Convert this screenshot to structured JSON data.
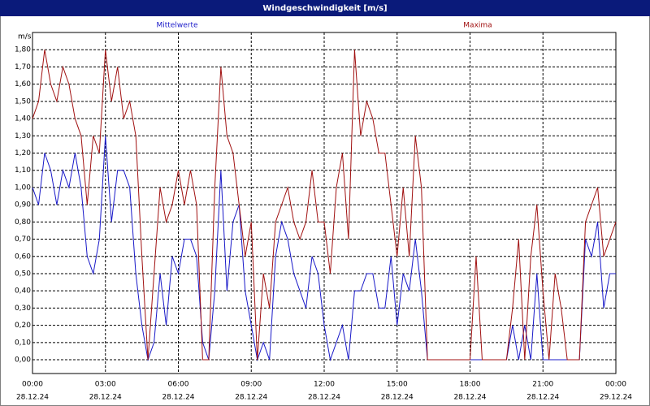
{
  "chart_data": {
    "type": "line",
    "title": "Windgeschwindigkeit [m/s]",
    "y_label": "m/s",
    "x": [
      0,
      0.25,
      0.5,
      0.75,
      1,
      1.25,
      1.5,
      1.75,
      2,
      2.25,
      2.5,
      2.75,
      3,
      3.25,
      3.5,
      3.75,
      4,
      4.25,
      4.5,
      4.75,
      5,
      5.25,
      5.5,
      5.75,
      6,
      6.25,
      6.5,
      6.75,
      7,
      7.25,
      7.5,
      7.75,
      8,
      8.25,
      8.5,
      8.75,
      9,
      9.25,
      9.5,
      9.75,
      10,
      10.25,
      10.5,
      10.75,
      11,
      11.25,
      11.5,
      11.75,
      12,
      12.25,
      12.5,
      12.75,
      13,
      13.25,
      13.5,
      13.75,
      14,
      14.25,
      14.5,
      14.75,
      15,
      15.25,
      15.5,
      15.75,
      16,
      16.25,
      16.5,
      16.75,
      17,
      17.25,
      17.5,
      17.75,
      18,
      18.25,
      18.5,
      18.75,
      19,
      19.25,
      19.5,
      19.75,
      20,
      20.25,
      20.5,
      20.75,
      21,
      21.25,
      21.5,
      21.75,
      22,
      22.25,
      22.5,
      22.75,
      23,
      23.25,
      23.5,
      23.75,
      24
    ],
    "series": [
      {
        "name": "Mittelwerte",
        "color": "#1818c8",
        "values": [
          1.0,
          0.9,
          1.2,
          1.1,
          0.9,
          1.1,
          1.0,
          1.2,
          1.0,
          0.6,
          0.5,
          0.7,
          1.3,
          0.8,
          1.1,
          1.1,
          1.0,
          0.5,
          0.2,
          0.0,
          0.1,
          0.5,
          0.2,
          0.6,
          0.5,
          0.7,
          0.7,
          0.6,
          0.1,
          0.0,
          0.4,
          1.1,
          0.4,
          0.8,
          0.9,
          0.4,
          0.2,
          0.0,
          0.1,
          0.0,
          0.6,
          0.8,
          0.7,
          0.5,
          0.4,
          0.3,
          0.6,
          0.5,
          0.2,
          0.0,
          0.1,
          0.2,
          0.0,
          0.4,
          0.4,
          0.5,
          0.5,
          0.3,
          0.3,
          0.6,
          0.2,
          0.5,
          0.4,
          0.7,
          0.4,
          0.0,
          0,
          0,
          0,
          0,
          0,
          0,
          0,
          0,
          0,
          0,
          0,
          0,
          0,
          0.2,
          0.0,
          0.2,
          0.0,
          0.5,
          0.0,
          0,
          0,
          0,
          0,
          0,
          0,
          0.7,
          0.6,
          0.8,
          0.3,
          0.5,
          0.5
        ]
      },
      {
        "name": "Maxima",
        "color": "#a01010",
        "values": [
          1.4,
          1.5,
          1.8,
          1.6,
          1.5,
          1.7,
          1.6,
          1.4,
          1.3,
          0.9,
          1.3,
          1.2,
          1.8,
          1.5,
          1.7,
          1.4,
          1.5,
          1.3,
          0.6,
          0.0,
          0.5,
          1.0,
          0.8,
          0.9,
          1.1,
          0.9,
          1.1,
          0.9,
          0.0,
          0.0,
          1.0,
          1.7,
          1.3,
          1.2,
          0.9,
          0.6,
          0.8,
          0.0,
          0.5,
          0.3,
          0.8,
          0.9,
          1.0,
          0.8,
          0.7,
          0.8,
          1.1,
          0.8,
          0.8,
          0.5,
          1.0,
          1.2,
          0.7,
          1.8,
          1.3,
          1.5,
          1.4,
          1.2,
          1.2,
          0.9,
          0.6,
          1.0,
          0.6,
          1.3,
          1.0,
          0.0,
          0,
          0,
          0,
          0,
          0,
          0,
          0,
          0.6,
          0,
          0,
          0,
          0,
          0,
          0.3,
          0.7,
          0.0,
          0.6,
          0.9,
          0.4,
          0.0,
          0.5,
          0.3,
          0.0,
          0.0,
          0.0,
          0.8,
          0.9,
          1.0,
          0.6,
          0.7,
          0.8
        ]
      }
    ],
    "xlim": [
      0,
      24
    ],
    "xticks": [
      {
        "value": 0,
        "label": "00:00",
        "date": "28.12.24"
      },
      {
        "value": 3,
        "label": "03:00",
        "date": "28.12.24"
      },
      {
        "value": 6,
        "label": "06:00",
        "date": "28.12.24"
      },
      {
        "value": 9,
        "label": "09:00",
        "date": "28.12.24"
      },
      {
        "value": 12,
        "label": "12:00",
        "date": "28.12.24"
      },
      {
        "value": 15,
        "label": "15:00",
        "date": "28.12.24"
      },
      {
        "value": 18,
        "label": "18:00",
        "date": "28.12.24"
      },
      {
        "value": 21,
        "label": "21:00",
        "date": "28.12.24"
      },
      {
        "value": 24,
        "label": "00:00",
        "date": "29.12.24"
      }
    ],
    "ylim": [
      -0.08,
      1.9
    ],
    "yticks": [
      {
        "value": 0,
        "label": "0,00"
      },
      {
        "value": 0.1,
        "label": "0,10"
      },
      {
        "value": 0.2,
        "label": "0,20"
      },
      {
        "value": 0.3,
        "label": "0,30"
      },
      {
        "value": 0.4,
        "label": "0,40"
      },
      {
        "value": 0.5,
        "label": "0,50"
      },
      {
        "value": 0.6,
        "label": "0,60"
      },
      {
        "value": 0.7,
        "label": "0,70"
      },
      {
        "value": 0.8,
        "label": "0,80"
      },
      {
        "value": 0.9,
        "label": "0,90"
      },
      {
        "value": 1.0,
        "label": "1,00"
      },
      {
        "value": 1.1,
        "label": "1,10"
      },
      {
        "value": 1.2,
        "label": "1,20"
      },
      {
        "value": 1.3,
        "label": "1,30"
      },
      {
        "value": 1.4,
        "label": "1,40"
      },
      {
        "value": 1.5,
        "label": "1,50"
      },
      {
        "value": 1.6,
        "label": "1,60"
      },
      {
        "value": 1.7,
        "label": "1,70"
      },
      {
        "value": 1.8,
        "label": "1,80"
      }
    ],
    "grid": true
  }
}
